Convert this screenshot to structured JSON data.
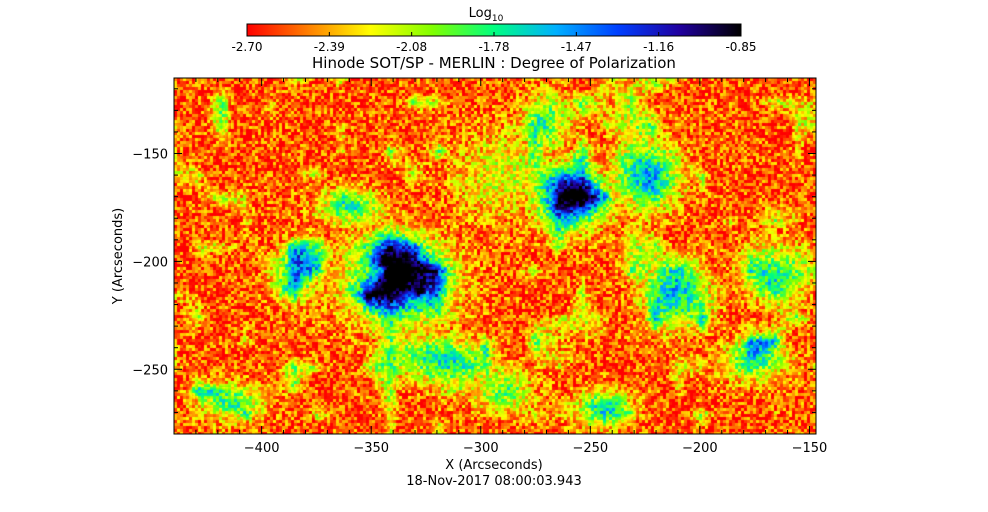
{
  "chart_data": {
    "type": "heatmap",
    "title": "Hinode SOT/SP - MERLIN : Degree of Polarization",
    "xlabel": "X (Arcseconds)",
    "ylabel": "Y (Arcseconds)",
    "xlim": [
      -440,
      -147
    ],
    "ylim": [
      -280,
      -115
    ],
    "xticks": [
      -400,
      -350,
      -300,
      -250,
      -200,
      -150
    ],
    "yticks": [
      -150,
      -200,
      -250
    ],
    "colorbar": {
      "label_main": "Log",
      "label_sub": "10",
      "ticks": [
        "-2.70",
        "-2.39",
        "-2.08",
        "-1.78",
        "-1.47",
        "-1.16",
        "-0.85"
      ],
      "range": [
        -2.7,
        -0.85
      ],
      "colormap": [
        "#ff0000",
        "#ff8000",
        "#ffff00",
        "#80ff00",
        "#00ff80",
        "#00b0ff",
        "#0040ff",
        "#2000a0",
        "#000000"
      ]
    },
    "background_value": -2.55,
    "regions": [
      {
        "x": -338,
        "y": -208,
        "sx": 22,
        "sy": 18,
        "peak": -0.95
      },
      {
        "x": -345,
        "y": -200,
        "sx": 8,
        "sy": 6,
        "peak": -0.85
      },
      {
        "x": -330,
        "y": -212,
        "sx": 7,
        "sy": 8,
        "peak": -0.85
      },
      {
        "x": -320,
        "y": -245,
        "sx": 16,
        "sy": 10,
        "peak": -1.25
      },
      {
        "x": -385,
        "y": -205,
        "sx": 10,
        "sy": 12,
        "peak": -1.6
      },
      {
        "x": -260,
        "y": -170,
        "sx": 16,
        "sy": 14,
        "peak": -1.15
      },
      {
        "x": -225,
        "y": -160,
        "sx": 14,
        "sy": 14,
        "peak": -1.2
      },
      {
        "x": -210,
        "y": -215,
        "sx": 14,
        "sy": 14,
        "peak": -1.3
      },
      {
        "x": -165,
        "y": -205,
        "sx": 14,
        "sy": 12,
        "peak": -1.35
      },
      {
        "x": -290,
        "y": -160,
        "sx": 22,
        "sy": 20,
        "peak": -2.0
      },
      {
        "x": -270,
        "y": -135,
        "sx": 10,
        "sy": 12,
        "peak": -1.6
      },
      {
        "x": -245,
        "y": -268,
        "sx": 12,
        "sy": 8,
        "peak": -1.5
      },
      {
        "x": -415,
        "y": -265,
        "sx": 14,
        "sy": 8,
        "peak": -1.7
      },
      {
        "x": -175,
        "y": -245,
        "sx": 14,
        "sy": 10,
        "peak": -1.6
      },
      {
        "x": -290,
        "y": -260,
        "sx": 14,
        "sy": 10,
        "peak": -1.8
      },
      {
        "x": -360,
        "y": -175,
        "sx": 14,
        "sy": 8,
        "peak": -1.6
      }
    ]
  },
  "footer": {
    "timestamp": "18-Nov-2017 08:00:03.943"
  }
}
